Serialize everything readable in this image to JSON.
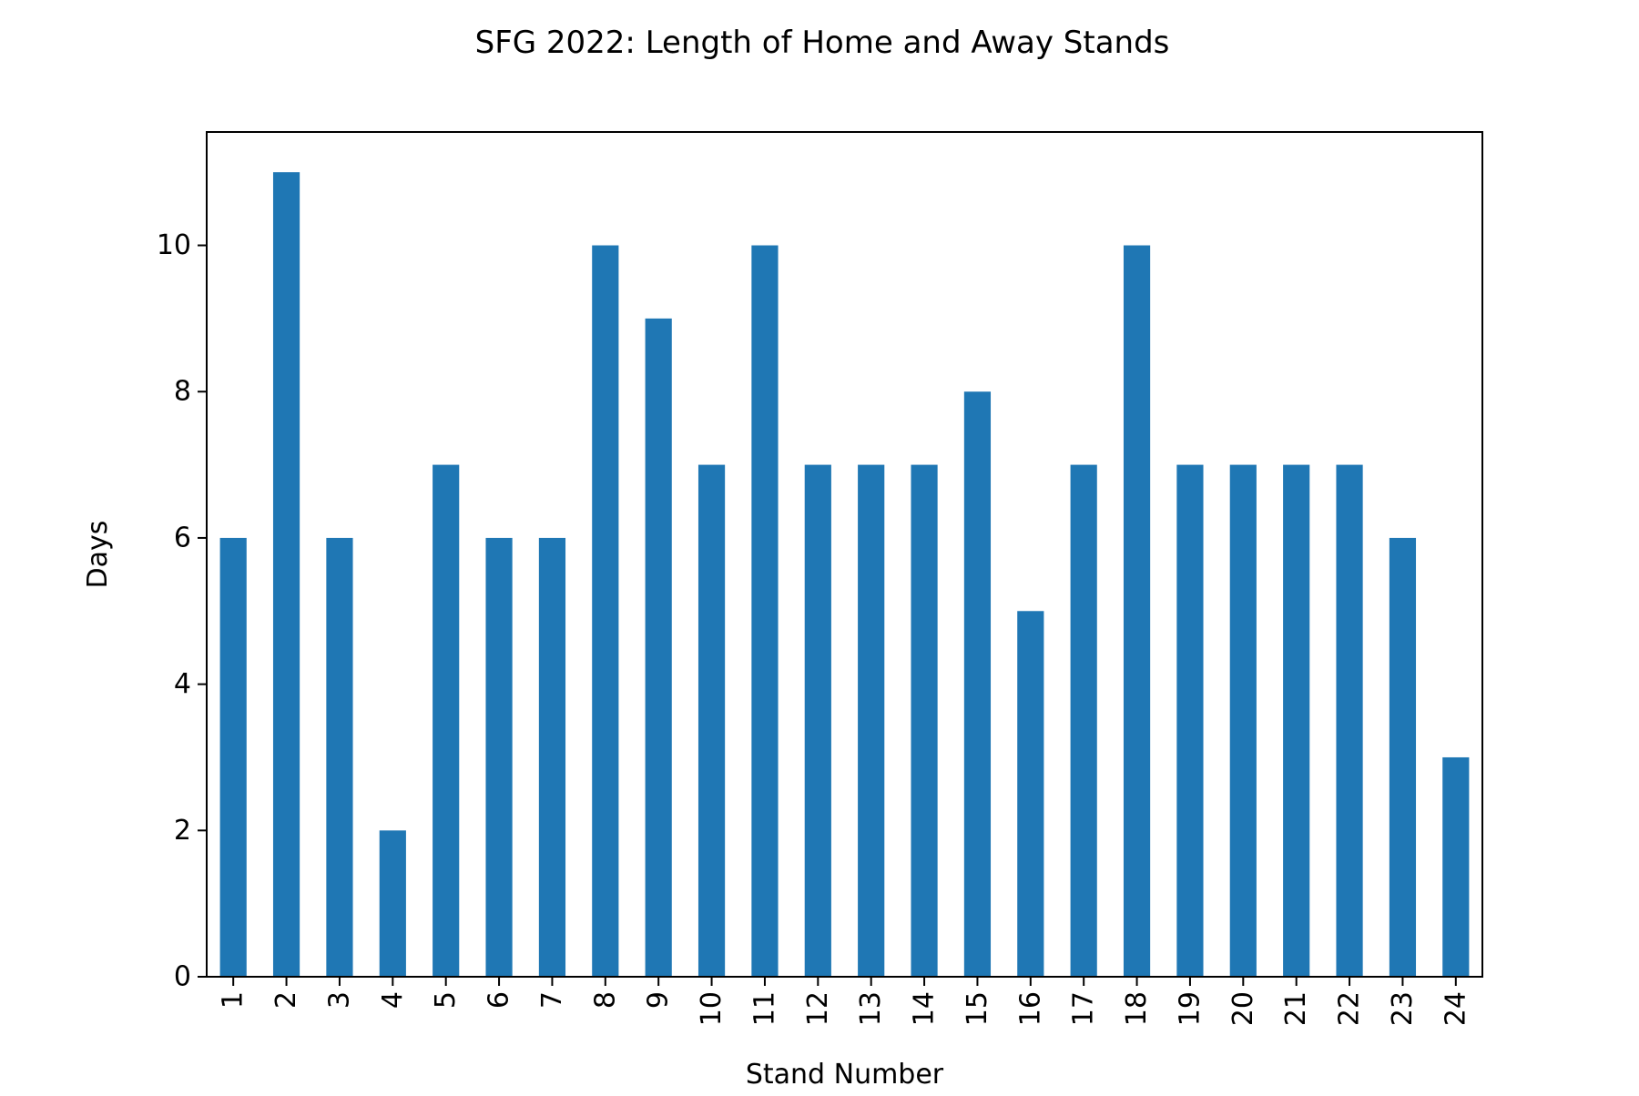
{
  "chart_data": {
    "type": "bar",
    "title": "SFG 2022: Length of Home and Away Stands",
    "xlabel": "Stand Number",
    "ylabel": "Days",
    "categories": [
      "1",
      "2",
      "3",
      "4",
      "5",
      "6",
      "7",
      "8",
      "9",
      "10",
      "11",
      "12",
      "13",
      "14",
      "15",
      "16",
      "17",
      "18",
      "19",
      "20",
      "21",
      "22",
      "23",
      "24"
    ],
    "values": [
      6,
      11,
      6,
      2,
      7,
      6,
      6,
      10,
      9,
      7,
      10,
      7,
      7,
      7,
      8,
      5,
      7,
      10,
      7,
      7,
      7,
      7,
      6,
      3
    ],
    "ylim": [
      0,
      11.55
    ],
    "yticks": [
      "0",
      "2",
      "4",
      "6",
      "8",
      "10"
    ],
    "grid": false,
    "legend": "none",
    "bar_color": "#1f77b4"
  }
}
